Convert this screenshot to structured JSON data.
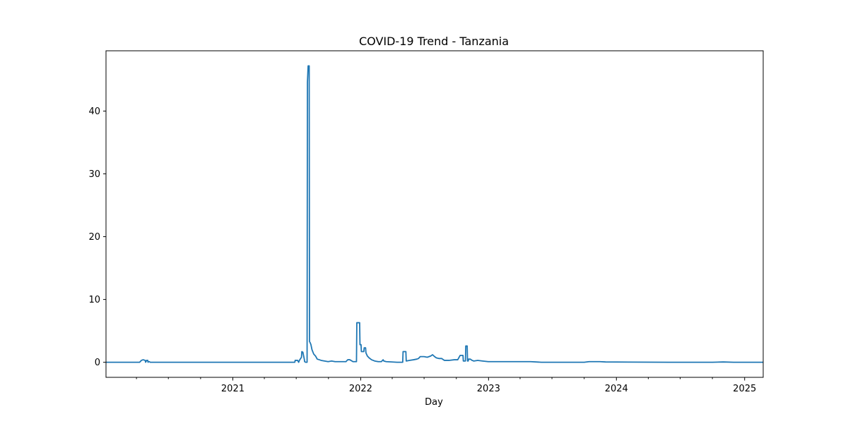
{
  "chart_data": {
    "type": "line",
    "title": "COVID-19 Trend - Tanzania",
    "xlabel": "Day",
    "ylabel": "",
    "x_ticks": [
      "2021",
      "2022",
      "2023",
      "2024",
      "2025"
    ],
    "y_ticks": [
      0,
      10,
      20,
      30,
      40
    ],
    "ylim": [
      -2.4,
      49.6
    ],
    "xlim": [
      "2020-01-05",
      "2025-02-23"
    ],
    "grid": false,
    "color": "#1f77b4",
    "series": [
      {
        "x": [
          "2020-01-05",
          "2020-04-10",
          "2020-04-15",
          "2020-04-20",
          "2020-04-26",
          "2020-04-27",
          "2020-04-30",
          "2020-05-03",
          "2020-05-04",
          "2020-05-05",
          "2020-05-08",
          "2020-05-10",
          "2020-05-11",
          "2020-05-14",
          "2021-06-27",
          "2021-06-28",
          "2021-07-05",
          "2021-07-08",
          "2021-07-10",
          "2021-07-16",
          "2021-07-17",
          "2021-07-20",
          "2021-07-24",
          "2021-07-25",
          "2021-07-28",
          "2021-08-01",
          "2021-08-02",
          "2021-08-04",
          "2021-08-07",
          "2021-08-08",
          "2021-08-10",
          "2021-08-12",
          "2021-08-15",
          "2021-08-20",
          "2021-08-25",
          "2021-08-30",
          "2021-09-05",
          "2021-09-10",
          "2021-09-20",
          "2021-09-30",
          "2021-10-10",
          "2021-10-20",
          "2021-11-01",
          "2021-11-10",
          "2021-11-20",
          "2021-11-25",
          "2021-12-01",
          "2021-12-10",
          "2021-12-20",
          "2021-12-21",
          "2021-12-29",
          "2021-12-30",
          "2022-01-02",
          "2022-01-03",
          "2022-01-10",
          "2022-01-11",
          "2022-01-15",
          "2022-01-16",
          "2022-01-20",
          "2022-01-25",
          "2022-02-01",
          "2022-02-10",
          "2022-02-20",
          "2022-03-01",
          "2022-03-06",
          "2022-03-08",
          "2022-03-15",
          "2022-04-15",
          "2022-05-01",
          "2022-05-02",
          "2022-05-10",
          "2022-05-11",
          "2022-05-20",
          "2022-06-01",
          "2022-06-10",
          "2022-06-15",
          "2022-06-20",
          "2022-07-01",
          "2022-07-10",
          "2022-07-20",
          "2022-07-25",
          "2022-07-31",
          "2022-08-05",
          "2022-08-12",
          "2022-08-20",
          "2022-08-28",
          "2022-09-01",
          "2022-09-10",
          "2022-09-25",
          "2022-10-05",
          "2022-10-12",
          "2022-10-20",
          "2022-10-21",
          "2022-10-27",
          "2022-10-28",
          "2022-11-01",
          "2022-11-02",
          "2022-11-04",
          "2022-11-05",
          "2022-11-10",
          "2022-11-15",
          "2022-11-20",
          "2022-12-01",
          "2022-12-15",
          "2022-12-31",
          "2023-01-15",
          "2023-02-01",
          "2023-03-01",
          "2023-04-01",
          "2023-05-01",
          "2023-06-01",
          "2023-10-01",
          "2023-10-15",
          "2023-11-01",
          "2023-11-15",
          "2023-12-01",
          "2024-06-01",
          "2024-10-01",
          "2024-11-01",
          "2024-12-01",
          "2025-02-23"
        ],
        "values": [
          0,
          0,
          0.3,
          0.4,
          0.3,
          0,
          0.3,
          0.3,
          0,
          0.1,
          0.1,
          0,
          0,
          0,
          0,
          0.3,
          0.3,
          0,
          0.3,
          0.8,
          1.7,
          1.6,
          0.5,
          0.1,
          0,
          0,
          44.6,
          47.2,
          47.2,
          3.3,
          3.1,
          2.8,
          2.0,
          1.3,
          1.0,
          0.5,
          0.4,
          0.3,
          0.2,
          0.1,
          0.2,
          0.1,
          0.1,
          0.1,
          0.1,
          0.4,
          0.4,
          0.1,
          0.1,
          6.3,
          6.3,
          2.8,
          2.8,
          1.7,
          1.7,
          2.3,
          2.3,
          1.5,
          1.0,
          0.7,
          0.4,
          0.2,
          0.1,
          0.1,
          0.4,
          0.2,
          0.1,
          0,
          0,
          1.7,
          1.7,
          0.2,
          0.3,
          0.4,
          0.5,
          0.6,
          0.9,
          0.9,
          0.8,
          1.0,
          1.2,
          0.9,
          0.7,
          0.6,
          0.6,
          0.3,
          0.3,
          0.3,
          0.4,
          0.4,
          1.1,
          1.1,
          0.2,
          0.2,
          2.6,
          2.6,
          0.2,
          0.2,
          0.5,
          0.5,
          0.3,
          0.2,
          0.3,
          0.2,
          0.1,
          0.1,
          0.1,
          0.1,
          0.1,
          0.1,
          0,
          0,
          0.1,
          0.1,
          0.1,
          0.05,
          0,
          0,
          0.05,
          0,
          0
        ]
      }
    ]
  }
}
